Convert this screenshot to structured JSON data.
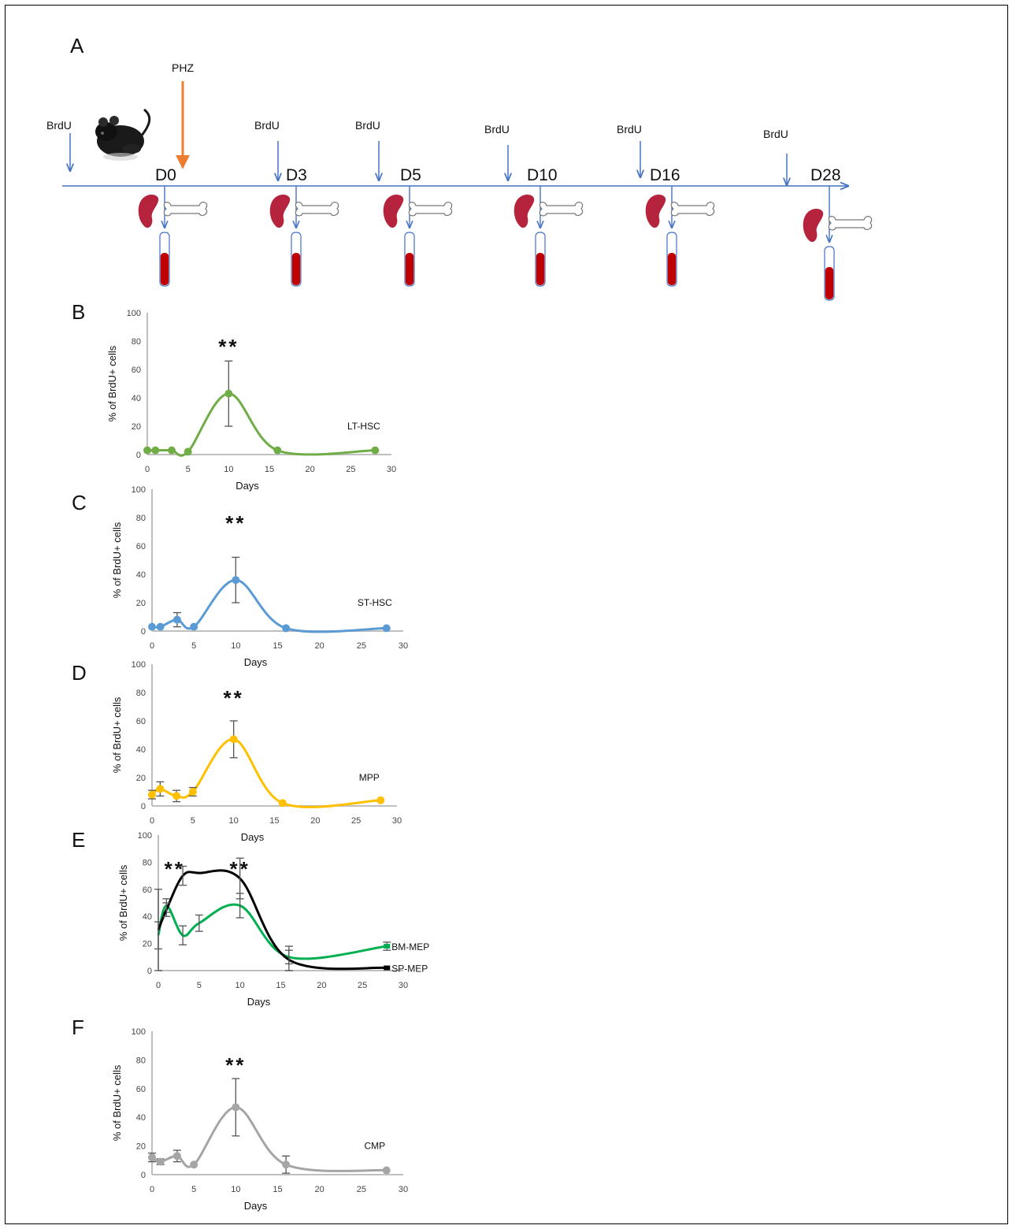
{
  "timeline": {
    "panel_letter": "A",
    "phz_label": "PHZ",
    "brdu_label": "BrdU",
    "days": [
      "D0",
      "D3",
      "D5",
      "D10",
      "D16",
      "D28"
    ],
    "colors": {
      "axis": "#4472c4",
      "phz": "#ed7d31",
      "blood": "#c00000",
      "spleen": "#b5243c"
    }
  },
  "chart_data": [
    {
      "panel": "B",
      "type": "line",
      "xlabel": "Days",
      "ylabel": "% of BrdU+ cells",
      "xlim": [
        0,
        30
      ],
      "ylim": [
        0,
        100
      ],
      "xticks": [
        "0",
        "5",
        "10",
        "15",
        "20",
        "25",
        "30"
      ],
      "yticks": [
        "0",
        "20",
        "40",
        "60",
        "80",
        "100"
      ],
      "significance": [
        {
          "x": 10,
          "text": "**"
        }
      ],
      "series": [
        {
          "name": "LT-HSC",
          "color": "#70ad47",
          "x": [
            0,
            1,
            3,
            5,
            10,
            16,
            28
          ],
          "y": [
            3,
            3,
            3,
            2,
            43,
            3,
            3
          ],
          "err": [
            0,
            0,
            0,
            0,
            23,
            0,
            0
          ]
        }
      ]
    },
    {
      "panel": "C",
      "type": "line",
      "xlabel": "Days",
      "ylabel": "% of BrdU+ cells",
      "xlim": [
        0,
        30
      ],
      "ylim": [
        0,
        100
      ],
      "xticks": [
        "0",
        "5",
        "10",
        "15",
        "20",
        "25",
        "30"
      ],
      "yticks": [
        "0",
        "20",
        "40",
        "60",
        "80",
        "100"
      ],
      "significance": [
        {
          "x": 10,
          "text": "**"
        }
      ],
      "series": [
        {
          "name": "ST-HSC",
          "color": "#5b9bd5",
          "x": [
            0,
            1,
            3,
            5,
            10,
            16,
            28
          ],
          "y": [
            3,
            3,
            8,
            3,
            36,
            2,
            2
          ],
          "err": [
            0,
            0,
            5,
            0,
            16,
            0,
            0
          ]
        }
      ]
    },
    {
      "panel": "D",
      "type": "line",
      "xlabel": "Days",
      "ylabel": "% of BrdU+ cells",
      "xlim": [
        0,
        30
      ],
      "ylim": [
        0,
        100
      ],
      "xticks": [
        "0",
        "5",
        "10",
        "15",
        "20",
        "25",
        "30"
      ],
      "yticks": [
        "0",
        "20",
        "40",
        "60",
        "80",
        "100"
      ],
      "significance": [
        {
          "x": 10,
          "text": "**"
        }
      ],
      "series": [
        {
          "name": "MPP",
          "color": "#ffc000",
          "x": [
            0,
            1,
            3,
            5,
            10,
            16,
            28
          ],
          "y": [
            8,
            12,
            7,
            10,
            47,
            2,
            4
          ],
          "err": [
            3,
            5,
            4,
            3,
            13,
            0,
            0
          ]
        }
      ]
    },
    {
      "panel": "E",
      "type": "line",
      "xlabel": "Days",
      "ylabel": "% of BrdU+ cells",
      "xlim": [
        0,
        30
      ],
      "ylim": [
        0,
        100
      ],
      "xticks": [
        "0",
        "5",
        "10",
        "15",
        "20",
        "25",
        "30"
      ],
      "yticks": [
        "0",
        "20",
        "40",
        "60",
        "80",
        "100"
      ],
      "significance": [
        {
          "x": 2,
          "text": "**"
        },
        {
          "x": 10,
          "text": "**"
        }
      ],
      "series": [
        {
          "name": "BM-MEP",
          "color": "#00b050",
          "x": [
            0,
            1,
            3,
            5,
            10,
            16,
            28
          ],
          "y": [
            26,
            48,
            26,
            35,
            48,
            10,
            18
          ],
          "err": [
            10,
            5,
            7,
            6,
            9,
            5,
            3
          ]
        },
        {
          "name": "SP-MEP",
          "color": "#000000",
          "x": [
            0,
            1,
            3,
            5,
            10,
            16,
            28
          ],
          "y": [
            30,
            45,
            70,
            72,
            68,
            8,
            2
          ],
          "err": [
            30,
            5,
            7,
            0,
            15,
            10,
            0
          ]
        }
      ]
    },
    {
      "panel": "F",
      "type": "line",
      "xlabel": "Days",
      "ylabel": "% of BrdU+ cells",
      "xlim": [
        0,
        30
      ],
      "ylim": [
        0,
        100
      ],
      "xticks": [
        "0",
        "5",
        "10",
        "15",
        "20",
        "25",
        "30"
      ],
      "yticks": [
        "0",
        "20",
        "40",
        "60",
        "80",
        "100"
      ],
      "significance": [
        {
          "x": 10,
          "text": "**"
        }
      ],
      "series": [
        {
          "name": "CMP",
          "color": "#a5a5a5",
          "x": [
            0,
            1,
            3,
            5,
            10,
            16,
            28
          ],
          "y": [
            12,
            9,
            13,
            7,
            47,
            7,
            3
          ],
          "err": [
            3,
            2,
            4,
            0,
            20,
            6,
            0
          ]
        }
      ]
    }
  ]
}
